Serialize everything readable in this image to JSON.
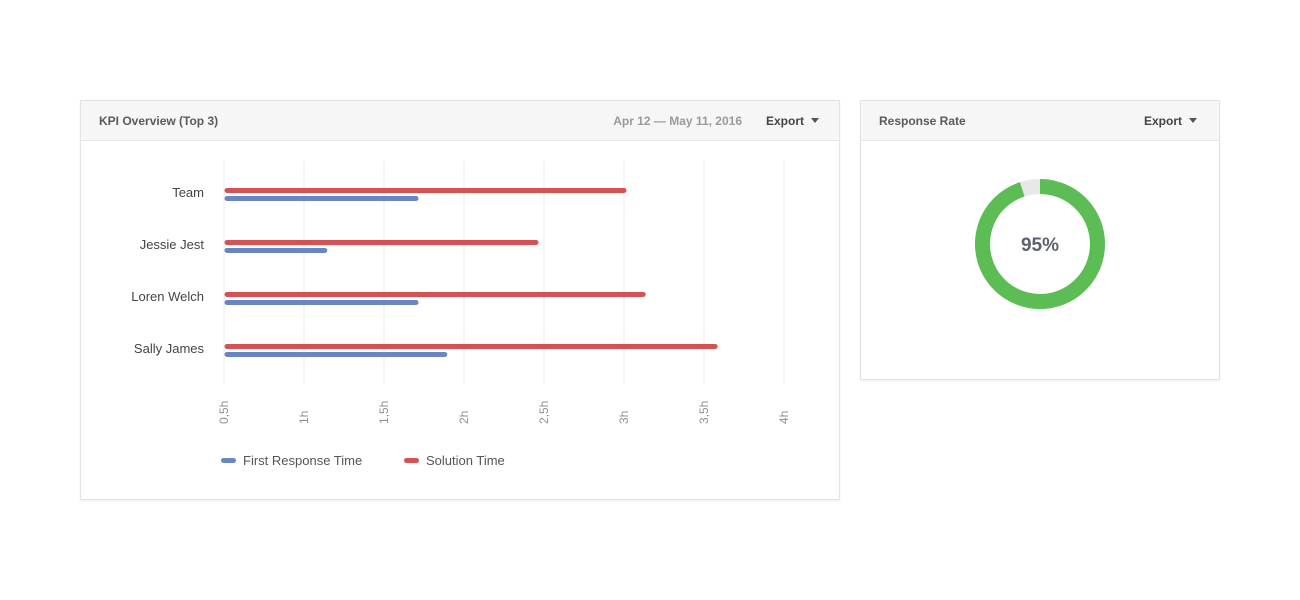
{
  "kpi_panel": {
    "title": "KPI Overview (Top 3)",
    "date_range": "Apr 12 — May 11, 2016",
    "export_label": "Export"
  },
  "response_panel": {
    "title": "Response Rate",
    "export_label": "Export",
    "value_label": "95%",
    "value_fraction": 0.95
  },
  "colors": {
    "first_response": "#6985c4",
    "solution": "#d45254",
    "donut_fill": "#5cbd55",
    "donut_track": "#e8e8e8",
    "grid": "#ececec"
  },
  "icons": {
    "export_caret": "caret-down-icon"
  },
  "chart_data": [
    {
      "type": "bar",
      "orientation": "horizontal",
      "categories": [
        "Team",
        "Jessie Jest",
        "Loren Welch",
        "Sally James"
      ],
      "series": [
        {
          "name": "Solution Time",
          "values": [
            3.0,
            2.45,
            3.12,
            3.57
          ]
        },
        {
          "name": "First Response Time",
          "values": [
            1.7,
            1.13,
            1.7,
            1.88
          ]
        }
      ],
      "xlim": [
        0.5,
        4
      ],
      "xticks": [
        0.5,
        1,
        1.5,
        2,
        2.5,
        3,
        3.5,
        4
      ],
      "xtick_labels": [
        "0,5h",
        "1h",
        "1,5h",
        "2h",
        "2,5h",
        "3h",
        "3,5h",
        "4h"
      ],
      "grid": true,
      "legend": [
        "First Response Time",
        "Solution Time"
      ],
      "legend_position": "bottom-left"
    },
    {
      "type": "pie",
      "variant": "donut",
      "values": [
        95,
        5
      ],
      "center_label": "95%"
    }
  ]
}
